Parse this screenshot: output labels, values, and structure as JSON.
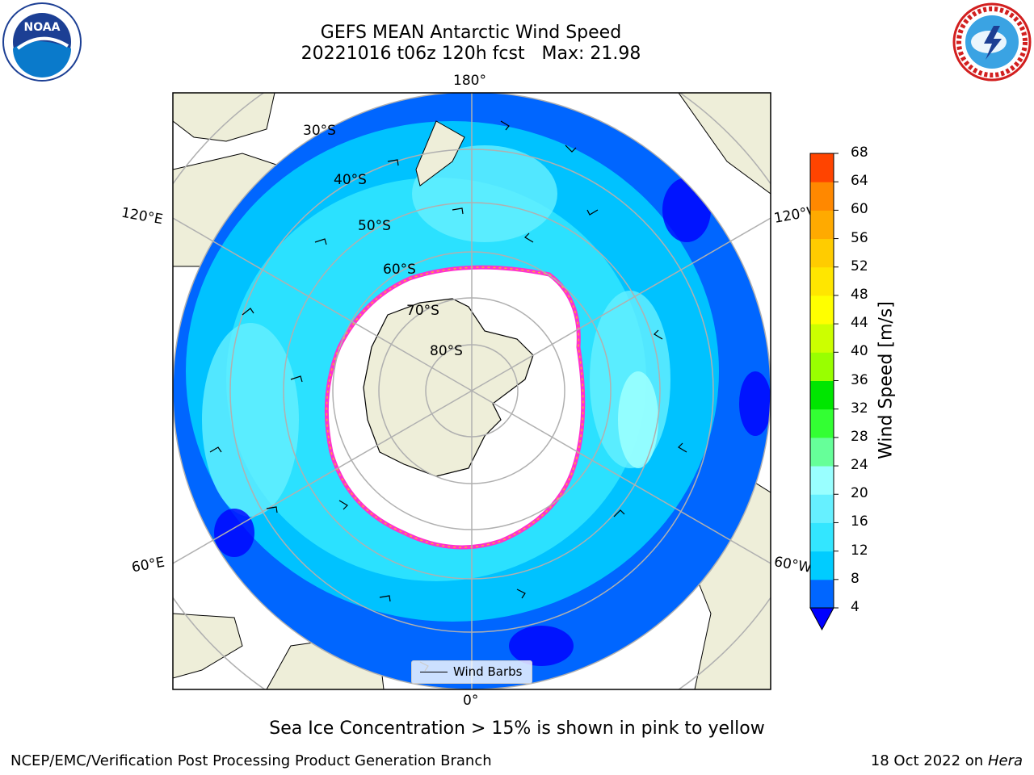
{
  "title": {
    "line1": "GEFS MEAN Antarctic Wind Speed",
    "line2": "20221016 t06z 120h fcst   Max: 21.98"
  },
  "map": {
    "longitude_labels": {
      "top": "180°",
      "bottom": "0°",
      "upper_left": "120°E",
      "upper_right": "120°W",
      "lower_left": "60°E",
      "lower_right": "60°W"
    },
    "latitude_labels": [
      "30°S",
      "40°S",
      "50°S",
      "60°S",
      "70°S",
      "80°S"
    ],
    "legend_label": "Wind Barbs"
  },
  "colorbar": {
    "label": "Wind Speed [m/s]",
    "ticks": [
      "4",
      "8",
      "12",
      "16",
      "20",
      "24",
      "28",
      "32",
      "36",
      "40",
      "44",
      "48",
      "52",
      "56",
      "60",
      "64",
      "68"
    ],
    "colors": [
      "#0066ff",
      "#00ccff",
      "#33e6ff",
      "#66f0ff",
      "#99ffff",
      "#66ff99",
      "#33ff33",
      "#00e600",
      "#99ff00",
      "#ccff00",
      "#ffff00",
      "#ffe600",
      "#ffcc00",
      "#ffaa00",
      "#ff8800",
      "#ff4400",
      "#ff0000"
    ],
    "under_color": "#0000ff"
  },
  "logos": {
    "left_text": "NOAA",
    "left_ring": "NATIONAL OCEANIC AND ATMOSPHERIC ADMINISTRATION · U.S. DEPARTMENT OF COMMERCE",
    "right_ring": "NATIONAL WEATHER SERVICE"
  },
  "footer": {
    "note": "Sea Ice Concentration > 15% is shown in pink to yellow",
    "credit_left": "NCEP/EMC/Verification Post Processing Product Generation Branch",
    "credit_right_prefix": "18 Oct 2022 on ",
    "credit_right_host": "Hera"
  }
}
